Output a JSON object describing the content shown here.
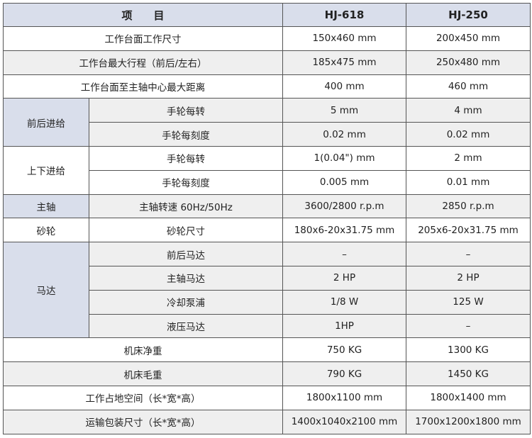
{
  "header": {
    "item": "项　　目",
    "model1": "HJ-618",
    "model2": "HJ-250"
  },
  "rows": [
    {
      "label": "工作台面工作尺寸",
      "v1": "150x460 mm",
      "v2": "200x450 mm"
    },
    {
      "label": "工作台最大行程（前后/左右）",
      "v1": "185x475 mm",
      "v2": "250x480 mm"
    },
    {
      "label": "工作台面至主轴中心最大距离",
      "v1": "400 mm",
      "v2": "460 mm"
    },
    {
      "group": "前后进给",
      "label": "手轮每转",
      "v1": "5 mm",
      "v2": "4 mm"
    },
    {
      "label": "手轮每刻度",
      "v1": "0.02 mm",
      "v2": "0.02 mm"
    },
    {
      "group": "上下进给",
      "label": "手轮每转",
      "v1": "1(0.04\") mm",
      "v2": "2 mm"
    },
    {
      "label": "手轮每刻度",
      "v1": "0.005 mm",
      "v2": "0.01 mm"
    },
    {
      "group": "主轴",
      "label": "主轴转速 60Hz/50Hz",
      "v1": "3600/2800 r.p.m",
      "v2": "2850 r.p.m"
    },
    {
      "group": "砂轮",
      "label": "砂轮尺寸",
      "v1": "180x6-20x31.75 mm",
      "v2": "205x6-20x31.75 mm"
    },
    {
      "group": "马达",
      "label": "前后马达",
      "v1": "–",
      "v2": "–"
    },
    {
      "label": "主轴马达",
      "v1": "2 HP",
      "v2": "2 HP"
    },
    {
      "label": "冷却泵浦",
      "v1": "1/8 W",
      "v2": "125 W"
    },
    {
      "label": "液压马达",
      "v1": "1HP",
      "v2": "–"
    },
    {
      "label": "机床净重",
      "v1": "750 KG",
      "v2": "1300 KG"
    },
    {
      "label": "机床毛重",
      "v1": "790 KG",
      "v2": "1450 KG"
    },
    {
      "label": "工作占地空间（长*宽*高）",
      "v1": "1800x1100 mm",
      "v2": "1800x1400 mm"
    },
    {
      "label": "运输包装尺寸（长*宽*高）",
      "v1": "1400x1040x2100 mm",
      "v2": "1700x1200x1800 mm"
    }
  ],
  "colors": {
    "header_bg": "#d9deeb",
    "stripe_bg": "#efefef",
    "border": "#555555"
  }
}
